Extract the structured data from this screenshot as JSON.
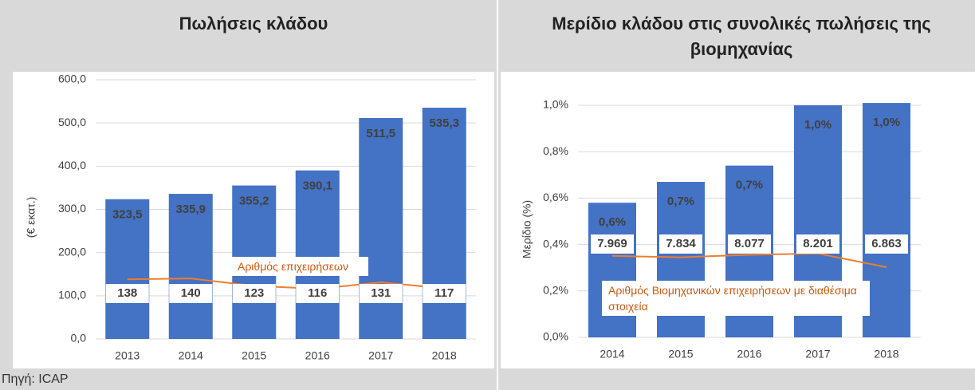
{
  "chart_data": [
    {
      "type": "bar",
      "title": "Πωλήσεις κλάδου",
      "y_label": "(€ εκατ.)",
      "categories": [
        "2013",
        "2014",
        "2015",
        "2016",
        "2017",
        "2018"
      ],
      "series": [
        {
          "color": "#4472c4",
          "values": [
            323.5,
            335.9,
            355.2,
            390.1,
            511.5,
            535.3
          ],
          "value_labels": [
            "323,5",
            "335,9",
            "355,2",
            "390,1",
            "511,5",
            "535,3"
          ]
        },
        {
          "type": "line",
          "name": "Αριθμός επιχειρήσεων",
          "color": "#ed7d31",
          "values": [
            138,
            140,
            123,
            116,
            131,
            117
          ]
        }
      ],
      "ylim": [
        0,
        600
      ],
      "yticks": [
        {
          "value": 0,
          "label": "0,0"
        },
        {
          "value": 100,
          "label": "100,0"
        },
        {
          "value": 200,
          "label": "200,0"
        },
        {
          "value": 300,
          "label": "300,0"
        },
        {
          "value": 400,
          "label": "400,0"
        },
        {
          "value": 500,
          "label": "500,0"
        },
        {
          "value": 600,
          "label": "600,0"
        }
      ],
      "grid": true
    },
    {
      "type": "bar",
      "title": "Μερίδιο κλάδου στις συνολικές πωλήσεις της βιομηχανίας",
      "y_label": "Μερίδιο (%)",
      "categories": [
        "2014",
        "2015",
        "2016",
        "2017",
        "2018"
      ],
      "series": [
        {
          "color": "#4472c4",
          "values": [
            0.58,
            0.67,
            0.74,
            1.0,
            1.01
          ],
          "value_labels": [
            "0,6%",
            "0,7%",
            "0,7%",
            "1,0%",
            "1,0%"
          ]
        },
        {
          "type": "line",
          "name": "Αριθμός Βιομηχανικών επιχειρήσεων με διαθέσιμα στοιχεία",
          "color": "#ed7d31",
          "axis": "y2",
          "values": [
            7969,
            7834,
            8077,
            8201,
            6863
          ],
          "value_labels": [
            "7.969",
            "7.834",
            "8.077",
            "8.201",
            "6.863"
          ]
        }
      ],
      "ylim": [
        0,
        1.0
      ],
      "yticks": [
        {
          "value": 0,
          "label": "0,0%"
        },
        {
          "value": 0.2,
          "label": "0,2%"
        },
        {
          "value": 0.4,
          "label": "0,4%"
        },
        {
          "value": 0.6,
          "label": "0,6%"
        },
        {
          "value": 0.8,
          "label": "0,8%"
        },
        {
          "value": 1.0,
          "label": "1,0%"
        }
      ],
      "y2lim": [
        0,
        22700
      ],
      "grid": true
    }
  ],
  "footer": {
    "source": "Πηγή: ICAP"
  }
}
